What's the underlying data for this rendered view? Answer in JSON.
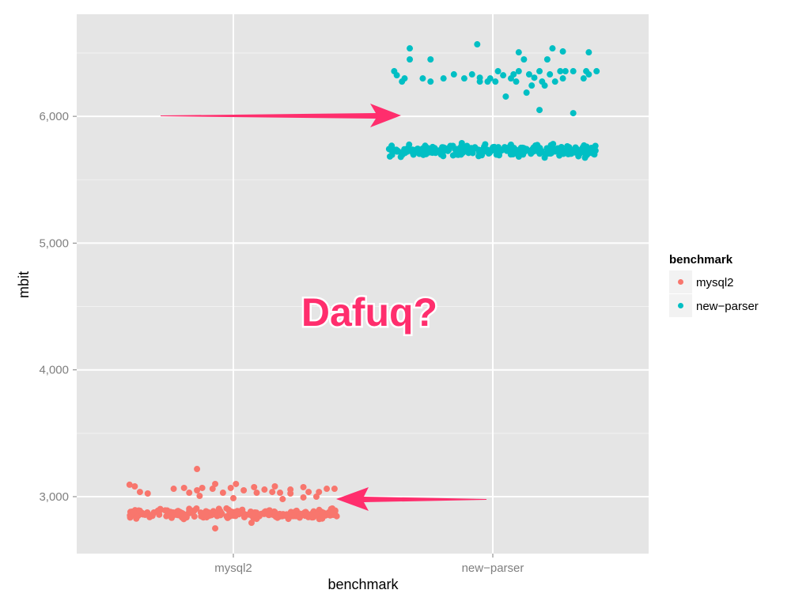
{
  "chart_data": {
    "type": "scatter",
    "subtype": "jitter",
    "title": "",
    "xlabel": "benchmark",
    "ylabel": "mbit",
    "categories": [
      "mysql2",
      "new−parser"
    ],
    "ylim": [
      2550,
      6800
    ],
    "yticks": [
      3000,
      4000,
      5000,
      6000
    ],
    "ytick_labels": [
      "3,000",
      "4,000",
      "5,000",
      "6,000"
    ],
    "grid": true,
    "legend": {
      "title": "benchmark",
      "placement": "right",
      "entries": [
        {
          "label": "mysql2",
          "color": "#F8766D"
        },
        {
          "label": "new−parser",
          "color": "#00BFC4"
        }
      ]
    },
    "annotation": "Dafuq?",
    "annotation_color": "#FF2E6D",
    "series": [
      {
        "name": "mysql2",
        "color": "#F8766D",
        "points_jitter_y": [
          [
            -0.4,
            3094
          ],
          [
            -0.38,
            3081
          ],
          [
            -0.36,
            3037
          ],
          [
            -0.33,
            3025
          ],
          [
            -0.23,
            3062
          ],
          [
            -0.19,
            3069
          ],
          [
            -0.17,
            3031
          ],
          [
            -0.14,
            3050
          ],
          [
            -0.12,
            3069
          ],
          [
            -0.13,
            3006
          ],
          [
            -0.08,
            3062
          ],
          [
            -0.07,
            3100
          ],
          [
            -0.04,
            3031
          ],
          [
            -0.01,
            3069
          ],
          [
            0.01,
            3100
          ],
          [
            0.0,
            2988
          ],
          [
            0.04,
            3050
          ],
          [
            0.08,
            3075
          ],
          [
            0.09,
            3031
          ],
          [
            0.12,
            3056
          ],
          [
            0.16,
            3081
          ],
          [
            0.15,
            3037
          ],
          [
            0.18,
            3031
          ],
          [
            0.19,
            2981
          ],
          [
            0.22,
            3056
          ],
          [
            0.22,
            3025
          ],
          [
            0.27,
            3075
          ],
          [
            0.27,
            2994
          ],
          [
            0.29,
            3037
          ],
          [
            0.32,
            3000
          ],
          [
            0.33,
            3037
          ],
          [
            0.36,
            3062
          ],
          [
            0.39,
            3062
          ],
          [
            -0.14,
            3218
          ],
          [
            -0.07,
            2750
          ],
          [
            0.07,
            2794
          ]
        ],
        "band": {
          "center": 2865,
          "spread": 18,
          "count": 230,
          "jitter": 0.4
        }
      },
      {
        "name": "new−parser",
        "color": "#00BFC4",
        "points_jitter_y": [
          [
            -0.32,
            6536
          ],
          [
            -0.32,
            6449
          ],
          [
            -0.24,
            6449
          ],
          [
            -0.06,
            6568
          ],
          [
            0.1,
            6505
          ],
          [
            0.12,
            6449
          ],
          [
            0.21,
            6449
          ],
          [
            0.23,
            6536
          ],
          [
            0.27,
            6512
          ],
          [
            0.37,
            6505
          ],
          [
            -0.38,
            6356
          ],
          [
            -0.37,
            6324
          ],
          [
            -0.35,
            6274
          ],
          [
            -0.34,
            6299
          ],
          [
            -0.27,
            6299
          ],
          [
            -0.24,
            6274
          ],
          [
            -0.19,
            6299
          ],
          [
            -0.15,
            6331
          ],
          [
            -0.11,
            6299
          ],
          [
            -0.08,
            6331
          ],
          [
            -0.05,
            6305
          ],
          [
            -0.05,
            6274
          ],
          [
            -0.02,
            6274
          ],
          [
            -0.01,
            6299
          ],
          [
            0.01,
            6274
          ],
          [
            0.02,
            6356
          ],
          [
            0.04,
            6324
          ],
          [
            0.07,
            6299
          ],
          [
            0.08,
            6331
          ],
          [
            0.09,
            6274
          ],
          [
            0.1,
            6356
          ],
          [
            0.14,
            6331
          ],
          [
            0.16,
            6305
          ],
          [
            0.18,
            6356
          ],
          [
            0.19,
            6274
          ],
          [
            0.15,
            6243
          ],
          [
            0.2,
            6243
          ],
          [
            0.22,
            6331
          ],
          [
            0.24,
            6274
          ],
          [
            0.26,
            6356
          ],
          [
            0.27,
            6299
          ],
          [
            0.28,
            6356
          ],
          [
            0.31,
            6356
          ],
          [
            0.35,
            6299
          ],
          [
            0.36,
            6356
          ],
          [
            0.37,
            6331
          ],
          [
            0.4,
            6356
          ],
          [
            0.05,
            6156
          ],
          [
            0.13,
            6187
          ],
          [
            0.18,
            6050
          ],
          [
            0.31,
            6025
          ]
        ],
        "band": {
          "center": 5730,
          "spread": 22,
          "count": 270,
          "jitter": 0.4
        }
      }
    ]
  }
}
